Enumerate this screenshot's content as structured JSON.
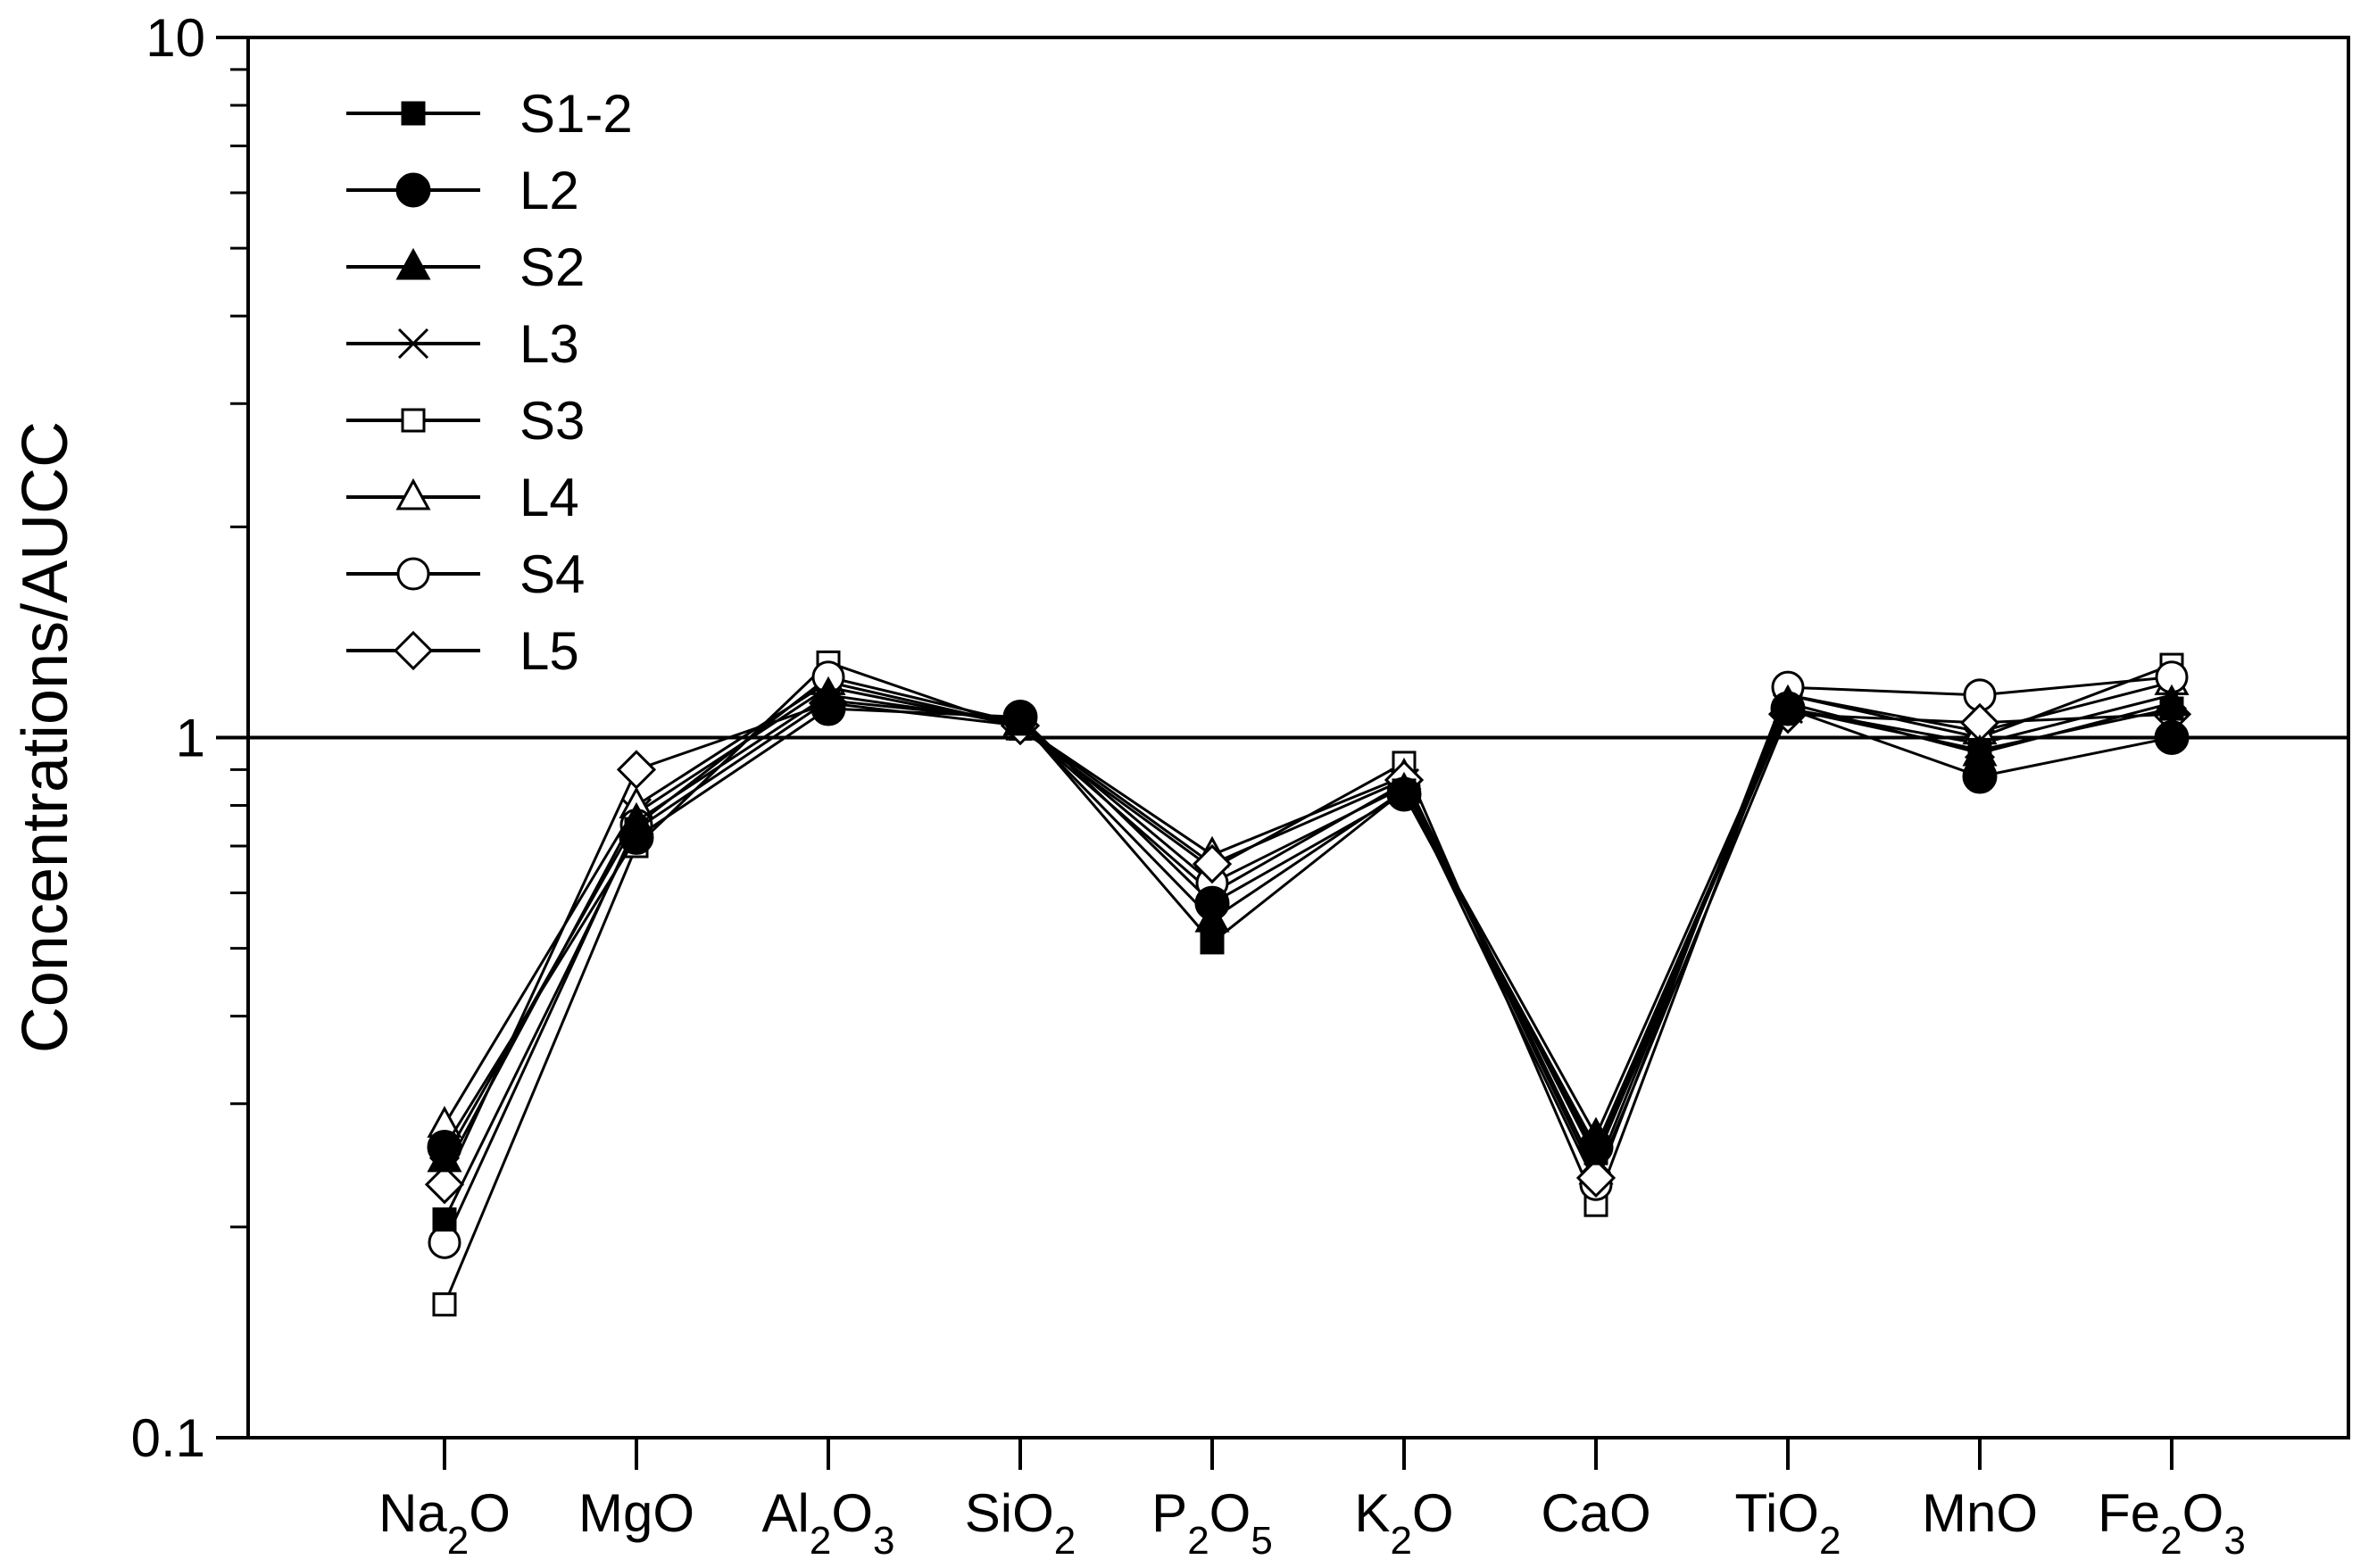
{
  "chart_data": {
    "type": "line",
    "title": "",
    "xlabel": "",
    "ylabel": "Concentrations/AUCC",
    "yscale": "log",
    "ylim": [
      0.1,
      10
    ],
    "yticks": [
      "0.1",
      "1",
      "10"
    ],
    "reference_line": 1,
    "grid": false,
    "legend_position": "top-left",
    "categories": [
      {
        "base": "Na",
        "sub1": "2",
        "mid": "O",
        "sub2": ""
      },
      {
        "base": "MgO",
        "sub1": "",
        "mid": "",
        "sub2": ""
      },
      {
        "base": "Al",
        "sub1": "2",
        "mid": "O",
        "sub2": "3"
      },
      {
        "base": "SiO",
        "sub1": "2",
        "mid": "",
        "sub2": ""
      },
      {
        "base": "P",
        "sub1": "2",
        "mid": "O",
        "sub2": "5"
      },
      {
        "base": "K",
        "sub1": "2",
        "mid": "O",
        "sub2": ""
      },
      {
        "base": "CaO",
        "sub1": "",
        "mid": "",
        "sub2": ""
      },
      {
        "base": "TiO",
        "sub1": "2",
        "mid": "",
        "sub2": ""
      },
      {
        "base": "MnO",
        "sub1": "",
        "mid": "",
        "sub2": ""
      },
      {
        "base": "Fe",
        "sub1": "2",
        "mid": "O",
        "sub2": "3"
      }
    ],
    "series": [
      {
        "name": "S1-2",
        "marker": "square",
        "filled": true,
        "values": [
          0.205,
          0.74,
          1.13,
          1.06,
          0.51,
          0.84,
          0.255,
          1.1,
          0.96,
          1.1
        ]
      },
      {
        "name": "L2",
        "marker": "circle",
        "filled": true,
        "values": [
          0.26,
          0.72,
          1.1,
          1.07,
          0.58,
          0.83,
          0.26,
          1.1,
          0.88,
          1.0
        ]
      },
      {
        "name": "S2",
        "marker": "triangle",
        "filled": true,
        "values": [
          0.25,
          0.76,
          1.15,
          1.05,
          0.55,
          0.84,
          0.27,
          1.12,
          0.95,
          1.12
        ]
      },
      {
        "name": "L3",
        "marker": "x",
        "filled": false,
        "values": [
          0.24,
          0.78,
          1.18,
          1.04,
          0.6,
          0.86,
          0.25,
          1.1,
          0.98,
          1.15
        ]
      },
      {
        "name": "S3",
        "marker": "square",
        "filled": false,
        "values": [
          0.155,
          0.7,
          1.28,
          1.03,
          0.65,
          0.92,
          0.215,
          1.15,
          1.0,
          1.27
        ]
      },
      {
        "name": "L4",
        "marker": "triangle",
        "filled": false,
        "values": [
          0.28,
          0.8,
          1.2,
          1.04,
          0.68,
          0.88,
          0.24,
          1.15,
          1.02,
          1.2
        ]
      },
      {
        "name": "S4",
        "marker": "circle",
        "filled": false,
        "values": [
          0.19,
          0.75,
          1.22,
          1.05,
          0.62,
          0.85,
          0.23,
          1.18,
          1.15,
          1.22
        ]
      },
      {
        "name": "L5",
        "marker": "diamond",
        "filled": false,
        "values": [
          0.23,
          0.9,
          1.12,
          1.04,
          0.66,
          0.87,
          0.235,
          1.08,
          1.05,
          1.08
        ]
      }
    ]
  }
}
